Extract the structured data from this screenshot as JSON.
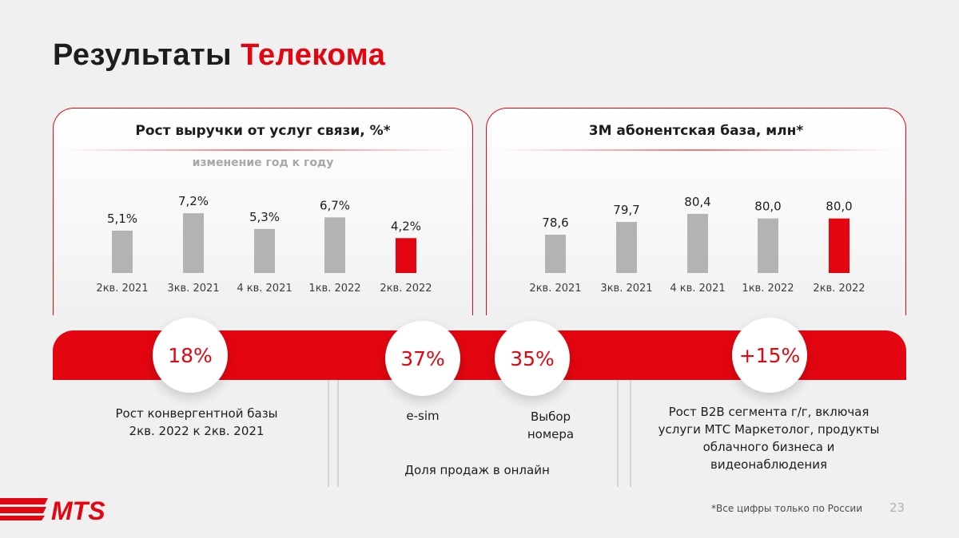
{
  "header": {
    "title_main": "Результаты",
    "title_accent": "Телекома"
  },
  "colors": {
    "accent": "#e30611",
    "bar_gray": "#b3b3b3"
  },
  "chart_data": [
    {
      "type": "bar",
      "title": "Рост выручки от услуг связи, %*",
      "subtitle": "изменение год к году",
      "categories": [
        "2кв. 2021",
        "3кв. 2021",
        "4 кв. 2021",
        "1кв. 2022",
        "2кв. 2022"
      ],
      "values": [
        5.1,
        7.2,
        5.3,
        6.7,
        4.2
      ],
      "labels": [
        "5,1%",
        "7,2%",
        "5,3%",
        "6,7%",
        "4,2%"
      ],
      "highlight_index": 4
    },
    {
      "type": "bar",
      "title": "3М абонентская база, млн*",
      "categories": [
        "2кв. 2021",
        "3кв. 2021",
        "4 кв. 2021",
        "1кв. 2022",
        "2кв. 2022"
      ],
      "values": [
        78.6,
        79.7,
        80.4,
        80.0,
        80.0
      ],
      "labels": [
        "78,6",
        "79,7",
        "80,4",
        "80,0",
        "80,0"
      ],
      "highlight_index": 4
    }
  ],
  "kpis": {
    "convergent": {
      "value": "18%",
      "text_line1": "Рост конвергентной базы",
      "text_line2": "2кв. 2022 к 2кв. 2021"
    },
    "esim": {
      "value": "37%",
      "label": "e-sim"
    },
    "number": {
      "value": "35%",
      "label_line1": "Выбор",
      "label_line2": "номера"
    },
    "online_caption": "Доля продаж в онлайн",
    "b2b": {
      "value": "+15%",
      "lines": [
        "Рост B2B сегмента г/г, включая",
        "услуги МТС Маркетолог, продукты",
        "облачного бизнеса и",
        "видеонаблюдения"
      ]
    }
  },
  "footer": {
    "footnote": "*Все цифры только по России",
    "page_number": "23",
    "logo_text": "MTS"
  }
}
